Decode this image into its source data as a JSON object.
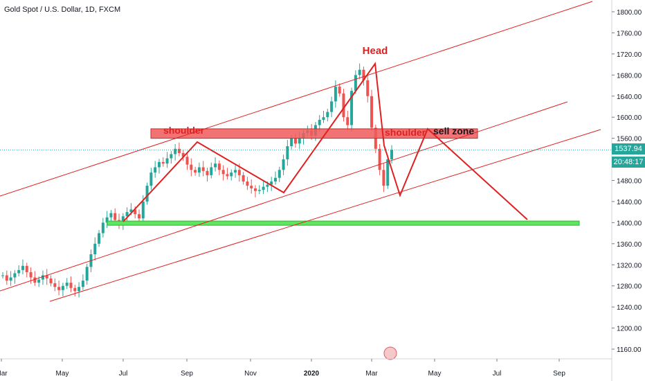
{
  "header": {
    "title": "Gold Spot / U.S. Dollar, 1D, FXCM"
  },
  "price_readout": {
    "last_price": "1537.94",
    "countdown": "20:48:17"
  },
  "chart_data": {
    "type": "candlestick",
    "y_ticks": [
      1160,
      1200,
      1240,
      1280,
      1320,
      1360,
      1400,
      1440,
      1480,
      1520,
      1560,
      1600,
      1640,
      1680,
      1720,
      1760,
      1800
    ],
    "ylim": [
      1130,
      1830
    ],
    "x_ticks": [
      "Mar",
      "May",
      "Jul",
      "Sep",
      "Nov",
      "2020",
      "Mar",
      "May",
      "Jul",
      "Sep"
    ],
    "annotations": {
      "head": "Head",
      "shoulder_left": "shoulder",
      "shoulder_right": "shoulder",
      "sell_zone": "sell zone"
    },
    "zones": {
      "resistance": {
        "low": 1560,
        "high": 1578,
        "color": "#f05b5b"
      },
      "support": {
        "low": 1395,
        "high": 1403,
        "color": "#5ee65e"
      }
    },
    "colors": {
      "up": "#26a69a",
      "down": "#ef5350",
      "annotation": "#e02020",
      "last_price_tag": "#26a69a",
      "countdown_tag": "#26a69a"
    },
    "closes": [
      1300,
      1290,
      1296,
      1304,
      1310,
      1318,
      1306,
      1296,
      1286,
      1292,
      1300,
      1294,
      1285,
      1278,
      1272,
      1280,
      1286,
      1276,
      1270,
      1278,
      1290,
      1316,
      1340,
      1360,
      1380,
      1400,
      1410,
      1418,
      1405,
      1396,
      1412,
      1420,
      1425,
      1416,
      1408,
      1440,
      1470,
      1495,
      1505,
      1515,
      1512,
      1522,
      1530,
      1540,
      1532,
      1525,
      1510,
      1500,
      1495,
      1505,
      1498,
      1490,
      1505,
      1512,
      1500,
      1492,
      1488,
      1495,
      1500,
      1490,
      1478,
      1470,
      1465,
      1460,
      1462,
      1468,
      1472,
      1478,
      1485,
      1500,
      1520,
      1545,
      1560,
      1550,
      1560,
      1570,
      1575,
      1565,
      1585,
      1595,
      1600,
      1610,
      1630,
      1658,
      1645,
      1600,
      1585,
      1650,
      1680,
      1690,
      1670,
      1640,
      1580,
      1540,
      1500,
      1470,
      1520,
      1537.94
    ]
  }
}
